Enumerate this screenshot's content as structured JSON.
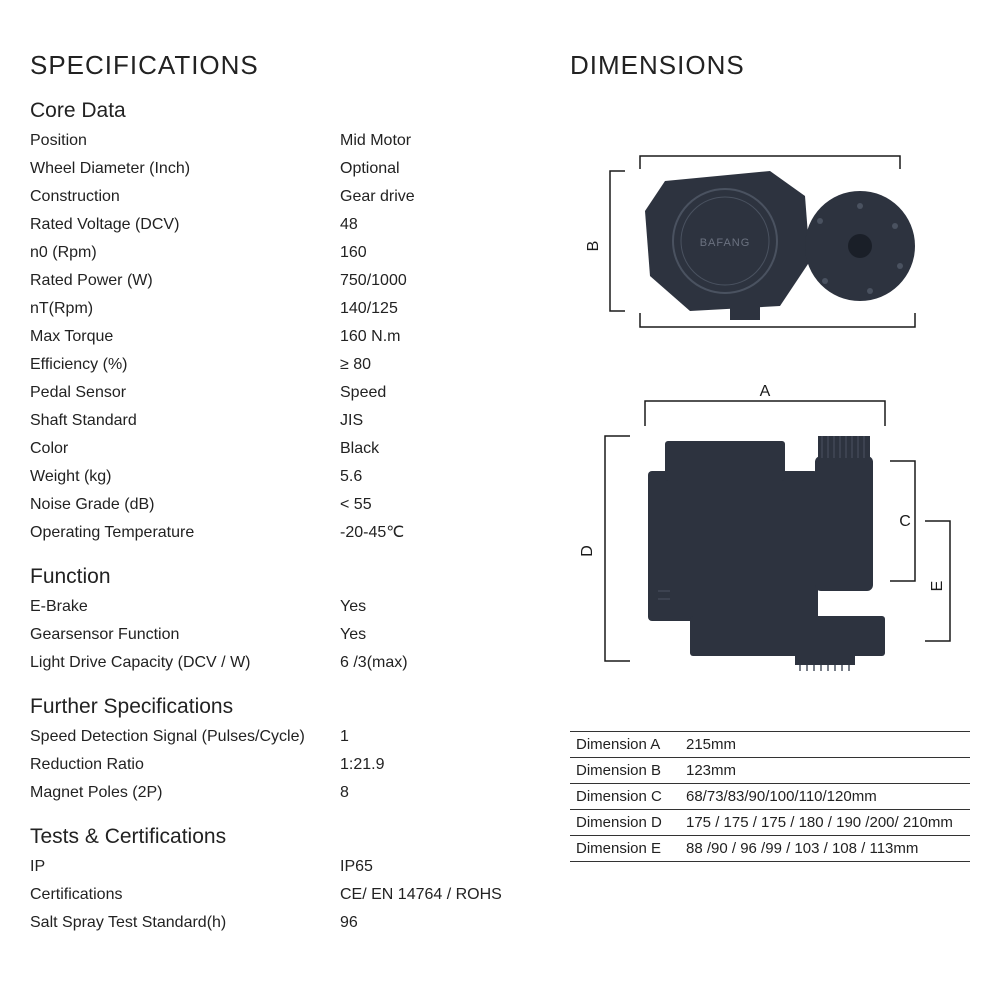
{
  "titles": {
    "specifications": "SPECIFICATIONS",
    "dimensions": "DIMENSIONS"
  },
  "sections": {
    "core_data": {
      "title": "Core Data",
      "rows": [
        {
          "label": "Position",
          "value": "Mid Motor"
        },
        {
          "label": "Wheel Diameter (Inch)",
          "value": "Optional"
        },
        {
          "label": "Construction",
          "value": "Gear drive"
        },
        {
          "label": "Rated Voltage (DCV)",
          "value": "48"
        },
        {
          "label": "n0 (Rpm)",
          "value": "160"
        },
        {
          "label": "Rated Power (W)",
          "value": "750/1000"
        },
        {
          "label": "nT(Rpm)",
          "value": "140/125"
        },
        {
          "label": "Max Torque",
          "value": "160 N.m"
        },
        {
          "label": "Efficiency (%)",
          "value": "≥ 80"
        },
        {
          "label": "Pedal Sensor",
          "value": "Speed"
        },
        {
          "label": "Shaft Standard",
          "value": "JIS"
        },
        {
          "label": "Color",
          "value": "Black"
        },
        {
          "label": "Weight (kg)",
          "value": "5.6"
        },
        {
          "label": "Noise Grade (dB)",
          "value": "< 55"
        },
        {
          "label": "Operating Temperature",
          "value": "-20-45℃"
        }
      ]
    },
    "function": {
      "title": "Function",
      "rows": [
        {
          "label": "E-Brake",
          "value": "Yes"
        },
        {
          "label": "Gearsensor Function",
          "value": "Yes"
        },
        {
          "label": "Light Drive Capacity (DCV / W)",
          "value": "6 /3(max)"
        }
      ]
    },
    "further": {
      "title": "Further Specifications",
      "rows": [
        {
          "label": "Speed Detection Signal (Pulses/Cycle)",
          "value": "1"
        },
        {
          "label": "Reduction Ratio",
          "value": "1:21.9"
        },
        {
          "label": "Magnet Poles (2P)",
          "value": "8"
        }
      ]
    },
    "tests": {
      "title": "Tests & Certifications",
      "rows": [
        {
          "label": "IP",
          "value": "IP65"
        },
        {
          "label": "Certifications",
          "value": "CE/ EN 14764 / ROHS"
        },
        {
          "label": "Salt Spray Test Standard(h)",
          "value": "96"
        }
      ]
    }
  },
  "dimensions_table": {
    "rows": [
      {
        "label": "Dimension A",
        "value": "215mm"
      },
      {
        "label": "Dimension B",
        "value": "123mm"
      },
      {
        "label": "Dimension C",
        "value": "68/73/83/90/100/110/120mm"
      },
      {
        "label": "Dimension D",
        "value": "175 / 175 / 175 / 180 / 190 /200/ 210mm"
      },
      {
        "label": "Dimension E",
        "value": "88 /90 / 96 /99 / 103 / 108 / 113mm"
      }
    ]
  },
  "diagram": {
    "labels": {
      "A": "A",
      "B": "B",
      "C": "C",
      "D": "D",
      "E": "E"
    },
    "brand": "BAFANG",
    "colors": {
      "motor": "#2d333f",
      "outline": "#1a1a1a",
      "dimline": "#1a1a1a",
      "text": "#1a1a1a"
    }
  }
}
